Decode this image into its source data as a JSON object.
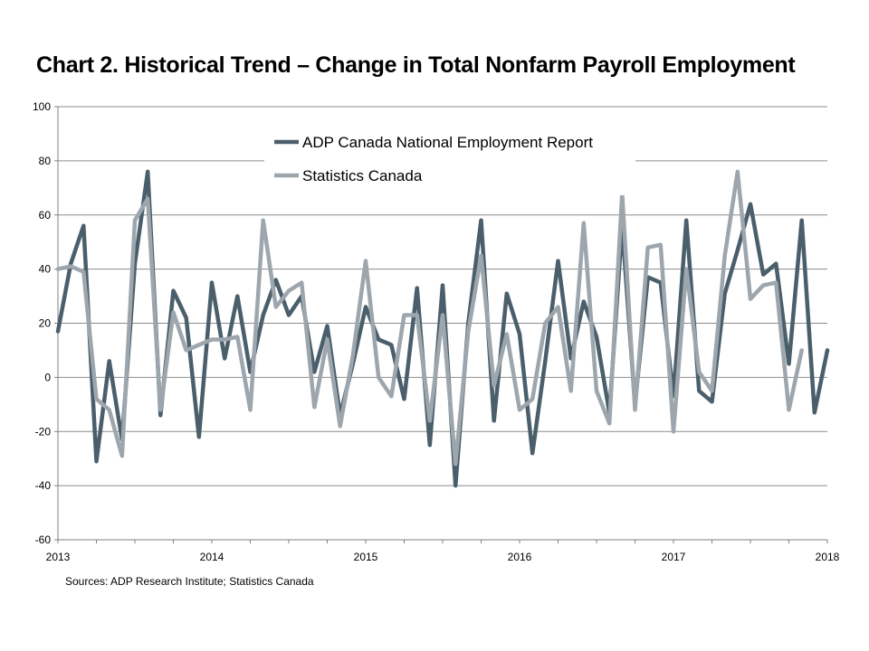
{
  "title": "Chart 2. Historical Trend – Change in Total Nonfarm Payroll Employment",
  "source": "Sources: ADP Research Institute; Statistics Canada",
  "chart_data": {
    "type": "line",
    "ylim": [
      -60,
      100
    ],
    "yticks": [
      "100",
      "80",
      "60",
      "40",
      "20",
      "0",
      "-20",
      "-40",
      "-60"
    ],
    "xlim": [
      "2013-01",
      "2018-01"
    ],
    "xticks": [
      "2013",
      "2014",
      "2015",
      "2016",
      "2017",
      "2018"
    ],
    "grid": true,
    "legend_position": "top-center",
    "series": [
      {
        "name": "ADP Canada National Employment Report",
        "color": "#4a5f6b",
        "x": [
          "2013-01",
          "2013-02",
          "2013-03",
          "2013-04",
          "2013-05",
          "2013-06",
          "2013-07",
          "2013-08",
          "2013-09",
          "2013-10",
          "2013-11",
          "2013-12",
          "2014-01",
          "2014-02",
          "2014-03",
          "2014-04",
          "2014-05",
          "2014-06",
          "2014-07",
          "2014-08",
          "2014-09",
          "2014-10",
          "2014-11",
          "2014-12",
          "2015-01",
          "2015-02",
          "2015-03",
          "2015-04",
          "2015-05",
          "2015-06",
          "2015-07",
          "2015-08",
          "2015-09",
          "2015-10",
          "2015-11",
          "2015-12",
          "2016-01",
          "2016-02",
          "2016-03",
          "2016-04",
          "2016-05",
          "2016-06",
          "2016-07",
          "2016-08",
          "2016-09",
          "2016-10",
          "2016-11",
          "2016-12",
          "2017-01",
          "2017-02",
          "2017-03",
          "2017-04",
          "2017-05",
          "2017-06",
          "2017-07",
          "2017-08",
          "2017-09",
          "2017-10",
          "2017-11",
          "2017-12",
          "2018-01"
        ],
        "values": [
          17,
          42,
          56,
          -31,
          6,
          -23,
          42,
          76,
          -14,
          32,
          22,
          -22,
          35,
          7,
          30,
          2,
          23,
          36,
          23,
          30,
          2,
          19,
          -14,
          5,
          26,
          14,
          12,
          -8,
          33,
          -25,
          34,
          -40,
          20,
          58,
          -16,
          31,
          16,
          -28,
          6,
          43,
          7,
          28,
          15,
          -13,
          56,
          -10,
          37,
          35,
          -7,
          58,
          -5,
          -9,
          31,
          47,
          64,
          38,
          42,
          5,
          58,
          -13,
          10
        ]
      },
      {
        "name": "Statistics Canada",
        "color": "#9ea6ad",
        "x": [
          "2013-01",
          "2013-02",
          "2013-03",
          "2013-04",
          "2013-05",
          "2013-06",
          "2013-07",
          "2013-08",
          "2013-09",
          "2013-10",
          "2013-11",
          "2013-12",
          "2014-01",
          "2014-02",
          "2014-03",
          "2014-04",
          "2014-05",
          "2014-06",
          "2014-07",
          "2014-08",
          "2014-09",
          "2014-10",
          "2014-11",
          "2014-12",
          "2015-01",
          "2015-02",
          "2015-03",
          "2015-04",
          "2015-05",
          "2015-06",
          "2015-07",
          "2015-08",
          "2015-09",
          "2015-10",
          "2015-11",
          "2015-12",
          "2016-01",
          "2016-02",
          "2016-03",
          "2016-04",
          "2016-05",
          "2016-06",
          "2016-07",
          "2016-08",
          "2016-09",
          "2016-10",
          "2016-11",
          "2016-12",
          "2017-01",
          "2017-02",
          "2017-03",
          "2017-04",
          "2017-05",
          "2017-06",
          "2017-07",
          "2017-08",
          "2017-09",
          "2017-10",
          "2017-11"
        ],
        "values": [
          40,
          41,
          39,
          -8,
          -12,
          -29,
          58,
          66,
          -12,
          24,
          10,
          12,
          14,
          14,
          15,
          -12,
          58,
          26,
          32,
          35,
          -11,
          14,
          -18,
          8,
          43,
          0,
          -7,
          23,
          23,
          -16,
          23,
          -32,
          17,
          45,
          -3,
          16,
          -12,
          -8,
          20,
          26,
          -5,
          57,
          -5,
          -17,
          68,
          -12,
          48,
          49,
          -20,
          40,
          2,
          -5,
          45,
          76,
          29,
          34,
          35,
          -12,
          10
        ]
      }
    ]
  }
}
